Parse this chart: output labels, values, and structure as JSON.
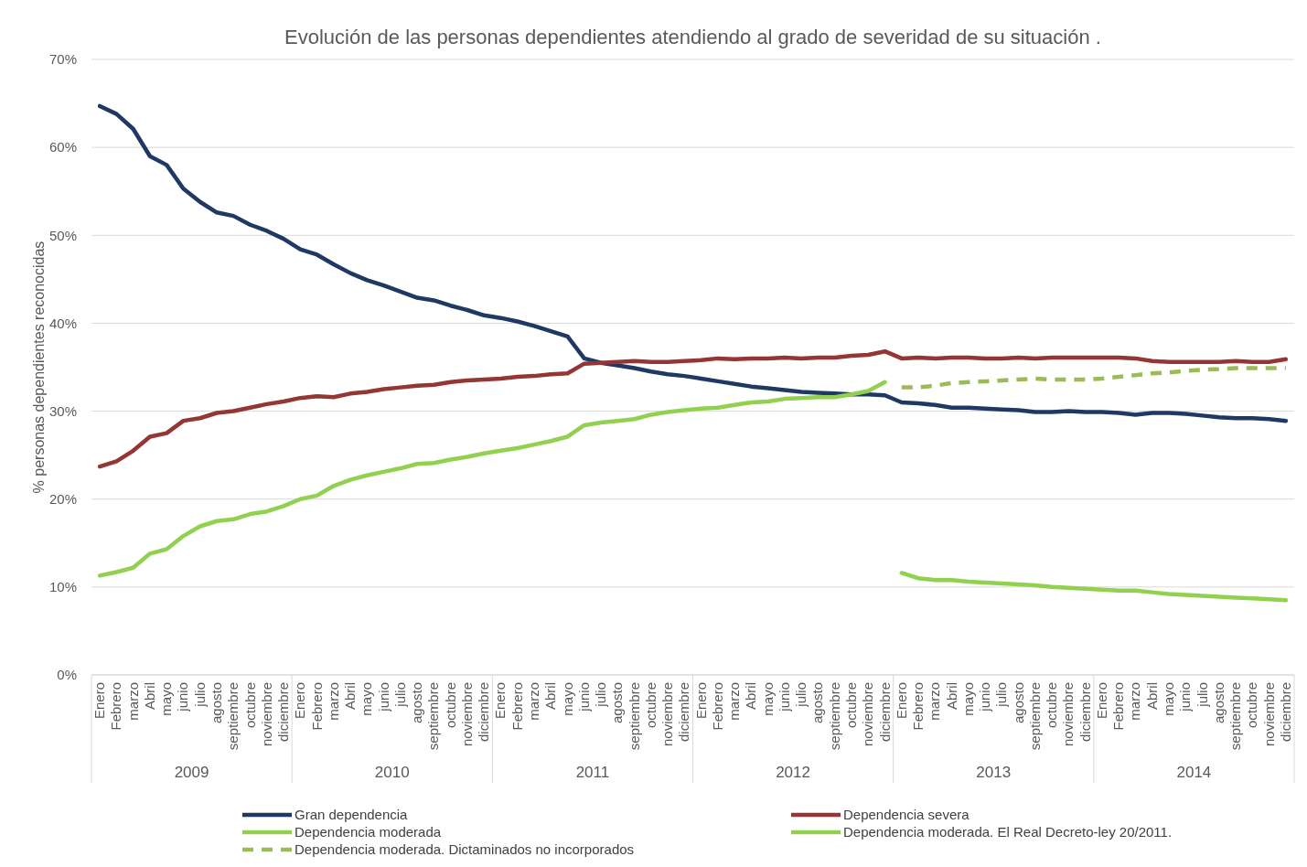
{
  "chart_data": {
    "type": "line",
    "title": "Evolución  de las personas dependientes atendiendo al  grado de severidad de su situación .",
    "ylabel": "% personas dependientes reconocidas",
    "categories": [
      "Enero",
      "Febrero",
      "marzo",
      "Abril",
      "mayo",
      "junio",
      "julio",
      "agosto",
      "septiembre",
      "octubre",
      "noviembre",
      "diciembre",
      "Enero",
      "Febrero",
      "marzo",
      "Abril",
      "mayo",
      "junio",
      "julio",
      "agosto",
      "septiembre",
      "octubre",
      "noviembre",
      "diciembre",
      "Enero",
      "Febrero",
      "marzo",
      "Abril",
      "mayo",
      "junio",
      "julio",
      "agosto",
      "septiembre",
      "octubre",
      "noviembre",
      "diciembre",
      "Enero",
      "Febrero",
      "marzo",
      "Abril",
      "mayo",
      "junio",
      "julio",
      "agosto",
      "septiembre",
      "octubre",
      "noviembre",
      "diciembre",
      "Enero",
      "Febrero",
      "marzo",
      "Abril",
      "mayo",
      "junio",
      "julio",
      "agosto",
      "septiembre",
      "octubre",
      "noviembre",
      "diciembre",
      "Enero",
      "Febrero",
      "marzo",
      "Abril",
      "mayo",
      "junio",
      "julio",
      "agosto",
      "septiembre",
      "octubre",
      "noviembre",
      "diciembre"
    ],
    "annotations": [
      "2009",
      "2010",
      "2011",
      "2012",
      "2013",
      "2014"
    ],
    "ylim": [
      0,
      70
    ],
    "yticks": [
      {
        "value": 0,
        "label": "0%"
      },
      {
        "value": 10,
        "label": "10%"
      },
      {
        "value": 20,
        "label": "20%"
      },
      {
        "value": 30,
        "label": "30%"
      },
      {
        "value": 40,
        "label": "40%"
      },
      {
        "value": 50,
        "label": "50%"
      },
      {
        "value": 60,
        "label": "60%"
      },
      {
        "value": 70,
        "label": "70%"
      }
    ],
    "grid": "y",
    "legend": "bottom",
    "series": [
      {
        "name": "Gran dependencia",
        "color": "#1f3864",
        "values": [
          64.7,
          63.8,
          62.1,
          59.0,
          58.0,
          55.3,
          53.8,
          52.6,
          52.2,
          51.2,
          50.5,
          49.6,
          48.4,
          47.8,
          46.7,
          45.7,
          44.9,
          44.3,
          43.6,
          42.9,
          42.6,
          42.0,
          41.5,
          40.9,
          40.6,
          40.2,
          39.7,
          39.1,
          38.5,
          36.0,
          35.5,
          35.2,
          34.9,
          34.5,
          34.2,
          34.0,
          33.7,
          33.4,
          33.1,
          32.8,
          32.6,
          32.4,
          32.2,
          32.1,
          32.0,
          31.9,
          31.9,
          31.8,
          31.0,
          30.9,
          30.7,
          30.4,
          30.4,
          30.3,
          30.2,
          30.1,
          29.9,
          29.9,
          30.0,
          29.9,
          29.9,
          29.8,
          29.6,
          29.8,
          29.8,
          29.7,
          29.5,
          29.3,
          29.2,
          29.2,
          29.1,
          28.9
        ]
      },
      {
        "name": "Dependencia severa",
        "color": "#943634",
        "values": [
          23.7,
          24.3,
          25.5,
          27.1,
          27.5,
          28.9,
          29.2,
          29.8,
          30.0,
          30.4,
          30.8,
          31.1,
          31.5,
          31.7,
          31.6,
          32.0,
          32.2,
          32.5,
          32.7,
          32.9,
          33.0,
          33.3,
          33.5,
          33.6,
          33.7,
          33.9,
          34.0,
          34.2,
          34.3,
          35.4,
          35.5,
          35.6,
          35.7,
          35.6,
          35.6,
          35.7,
          35.8,
          36.0,
          35.9,
          36.0,
          36.0,
          36.1,
          36.0,
          36.1,
          36.1,
          36.3,
          36.4,
          36.8,
          36.0,
          36.1,
          36.0,
          36.1,
          36.1,
          36.0,
          36.0,
          36.1,
          36.0,
          36.1,
          36.1,
          36.1,
          36.1,
          36.1,
          36.0,
          35.7,
          35.6,
          35.6,
          35.6,
          35.6,
          35.7,
          35.6,
          35.6,
          35.9
        ]
      },
      {
        "name": "Dependencia moderada",
        "color": "#92d050",
        "values": [
          11.3,
          11.7,
          12.2,
          13.8,
          14.3,
          15.8,
          16.9,
          17.5,
          17.7,
          18.3,
          18.6,
          19.2,
          20.0,
          20.4,
          21.5,
          22.2,
          22.7,
          23.1,
          23.5,
          24.0,
          24.1,
          24.5,
          24.8,
          25.2,
          25.5,
          25.8,
          26.2,
          26.6,
          27.1,
          28.4,
          28.7,
          28.9,
          29.1,
          29.6,
          29.9,
          30.1,
          30.3,
          30.4,
          30.7,
          31.0,
          31.1,
          31.4,
          31.5,
          31.6,
          31.6,
          31.9,
          32.3,
          33.3,
          null,
          null,
          null,
          null,
          null,
          null,
          null,
          null,
          null,
          null,
          null,
          null,
          null,
          null,
          null,
          null,
          null,
          null,
          null,
          null,
          null,
          null,
          null,
          null
        ]
      },
      {
        "name": "Dependencia moderada. El Real Decreto-ley 20/2011.",
        "color": "#92d050",
        "values": [
          null,
          null,
          null,
          null,
          null,
          null,
          null,
          null,
          null,
          null,
          null,
          null,
          null,
          null,
          null,
          null,
          null,
          null,
          null,
          null,
          null,
          null,
          null,
          null,
          null,
          null,
          null,
          null,
          null,
          null,
          null,
          null,
          null,
          null,
          null,
          null,
          null,
          null,
          null,
          null,
          null,
          null,
          null,
          null,
          null,
          null,
          null,
          null,
          11.6,
          11.0,
          10.8,
          10.8,
          10.6,
          10.5,
          10.4,
          10.3,
          10.2,
          10.0,
          9.9,
          9.8,
          9.7,
          9.6,
          9.6,
          9.4,
          9.2,
          9.1,
          9.0,
          8.9,
          8.8,
          8.7,
          8.6,
          8.5
        ]
      },
      {
        "name": "Dependencia moderada. Dictaminados no incorporados",
        "color": "#9bbb59",
        "line_style": "dashed",
        "values": [
          null,
          null,
          null,
          null,
          null,
          null,
          null,
          null,
          null,
          null,
          null,
          null,
          null,
          null,
          null,
          null,
          null,
          null,
          null,
          null,
          null,
          null,
          null,
          null,
          null,
          null,
          null,
          null,
          null,
          null,
          null,
          null,
          null,
          null,
          null,
          null,
          null,
          null,
          null,
          null,
          null,
          null,
          null,
          null,
          null,
          null,
          null,
          null,
          32.7,
          32.7,
          32.9,
          33.2,
          33.3,
          33.4,
          33.5,
          33.6,
          33.7,
          33.6,
          33.6,
          33.6,
          33.7,
          33.9,
          34.1,
          34.3,
          34.4,
          34.6,
          34.7,
          34.8,
          34.9,
          34.9,
          34.9,
          34.9
        ]
      }
    ]
  }
}
